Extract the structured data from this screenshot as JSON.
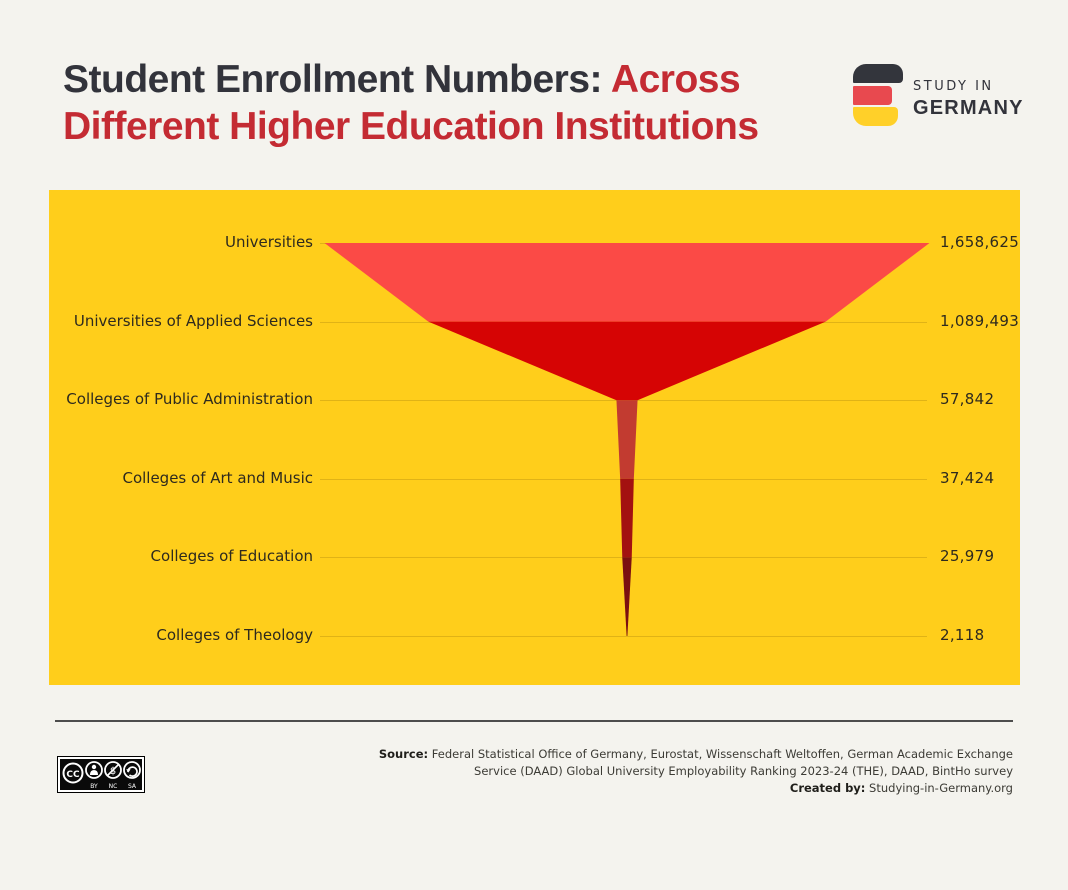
{
  "header": {
    "title_dark": "Student Enrollment Numbers: ",
    "title_red": "Across",
    "title_line2": "Different Higher Education Institutions",
    "accent_color": "#c42b33",
    "dark_color": "#32333b"
  },
  "logo": {
    "line1": "STUDY IN",
    "line2": "GERMANY",
    "flag_colors": [
      "#33353c",
      "#e8494f",
      "#ffd029"
    ]
  },
  "chart_data": {
    "type": "funnel",
    "title": "Student Enrollment Numbers: Across Different Higher Education Institutions",
    "categories": [
      "Universities",
      "Universities of Applied Sciences",
      "Colleges of Public Administration",
      "Colleges of Art and Music",
      "Colleges of Education",
      "Colleges of Theology"
    ],
    "values": [
      1658625,
      1089493,
      57842,
      37424,
      25979,
      2118
    ],
    "value_labels": [
      "1,658,625",
      "1,089,493",
      "57,842",
      "37,424",
      "25,979",
      "2,118"
    ],
    "segment_colors": [
      "#fb4a46",
      "#d60404",
      "#c23b30",
      "#a31110",
      "#7b0f10"
    ],
    "panel_background": "#ffce1b",
    "orientation": "vertical",
    "legend": "none",
    "grid": "row-leader-lines"
  },
  "footer": {
    "source_label": "Source:",
    "source_line1": " Federal Statistical Office of Germany, Eurostat, Wissenschaft Weltoffen, German Academic Exchange",
    "source_line2": "Service (DAAD) Global University Employability Ranking 2023-24 (THE), DAAD, BintHo survey",
    "created_label": "Created by:",
    "created_text": " Studying-in-Germany.org",
    "license": {
      "name": "CC BY-NC-SA",
      "cc_label": "CC",
      "parts": [
        "BY",
        "NC",
        "SA"
      ]
    }
  }
}
